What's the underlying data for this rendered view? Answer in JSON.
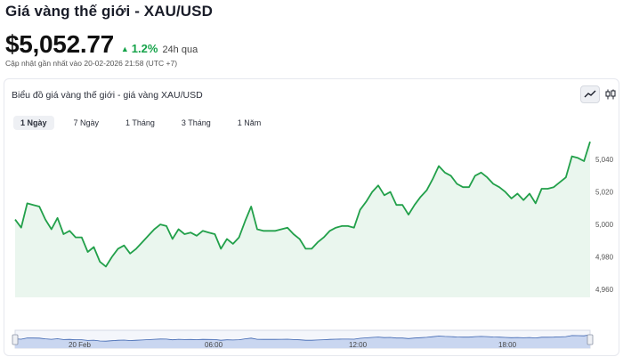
{
  "header": {
    "title": "Giá vàng thế giới - XAU/USD",
    "price": "$5,052.77",
    "change_arrow": "▲",
    "change": "1.2%",
    "period": "24h qua",
    "updated": "Cập nhật gần nhất vào 20-02-2026 21:58 (UTC +7)"
  },
  "card": {
    "title": "Biểu đồ giá vàng thế giới - giá vàng XAU/USD",
    "tabs": [
      {
        "label": "1 Ngày",
        "active": true
      },
      {
        "label": "7 Ngày",
        "active": false
      },
      {
        "label": "1 Tháng",
        "active": false
      },
      {
        "label": "3 Tháng",
        "active": false
      },
      {
        "label": "1 Năm",
        "active": false
      }
    ],
    "toggles": [
      {
        "icon": "line-chart-icon",
        "active": true
      },
      {
        "icon": "candlestick-icon",
        "active": false
      }
    ]
  },
  "colors": {
    "line": "#22a04a",
    "area": "#eaf6ee",
    "navigator": "#c9d6f0",
    "navigator_line": "#3c64b0"
  },
  "chart_data": {
    "type": "area",
    "y_axis_labels": [
      "5,040",
      "5,020",
      "5,000",
      "4,980",
      "4,960"
    ],
    "y_ticks": [
      5040,
      5020,
      5000,
      4980,
      4960
    ],
    "ylim": [
      4955,
      5050
    ],
    "navigator_labels": [
      "20 Feb",
      "06:00",
      "12:00",
      "18:00"
    ],
    "series": [
      {
        "values": [
          5003,
          4998,
          5013,
          5012,
          5011,
          5003,
          4997,
          5004,
          4994,
          4996,
          4992,
          4992,
          4983,
          4986,
          4977,
          4974,
          4980,
          4985,
          4987,
          4982,
          4985,
          4989,
          4993,
          4997,
          5000,
          4999,
          4991,
          4997,
          4994,
          4995,
          4993,
          4996,
          4995,
          4994,
          4985,
          4991,
          4988,
          4992,
          5002,
          5011,
          4997,
          4996,
          4996,
          4996,
          4997,
          4998,
          4994,
          4991,
          4985,
          4985,
          4989,
          4992,
          4996,
          4998,
          4999,
          4999,
          4998,
          5009,
          5014,
          5020,
          5024,
          5018,
          5020,
          5012,
          5012,
          5006,
          5012,
          5017,
          5021,
          5028,
          5036,
          5032,
          5030,
          5025,
          5023,
          5023,
          5030,
          5032,
          5029,
          5025,
          5023,
          5020,
          5016,
          5019,
          5015,
          5019,
          5013,
          5022,
          5022,
          5023,
          5026,
          5029,
          5042,
          5041,
          5039,
          5051
        ]
      }
    ]
  }
}
